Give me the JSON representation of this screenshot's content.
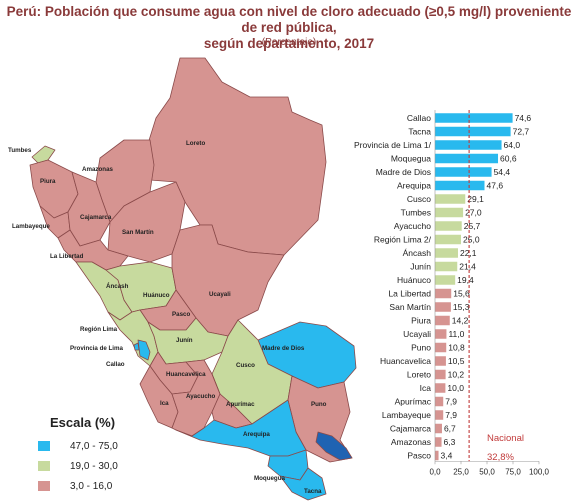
{
  "header": {
    "title_line1": "Perú: Población que consume agua con nivel de cloro adecuado (≥0,5 mg/l) proveniente de red pública,",
    "title_line2": "según departamento, 2017",
    "subtitle": "(Porcentaje)"
  },
  "map": {
    "labels": [
      "Tumbes",
      "Piura",
      "Amazonas",
      "Loreto",
      "Lambayeque",
      "Cajamarca",
      "San Martín",
      "La Libertad",
      "Áncash",
      "Huánuco",
      "Ucayali",
      "Pasco",
      "Región Lima",
      "Provincia de Lima",
      "Callao",
      "Junín",
      "Madre de Dios",
      "Huancavelica",
      "Cusco",
      "Ica",
      "Ayacucho",
      "Apurímac",
      "Puno",
      "Arequipa",
      "Moquegua",
      "Tacna"
    ],
    "colors": {
      "high": "#29b9ee",
      "mid": "#c7da9e",
      "low": "#d69491",
      "lake": "#1f63b2",
      "border": "#8a4a4a"
    }
  },
  "legend": {
    "title": "Escala (%)",
    "items": [
      {
        "label": "47,0 - 75,0",
        "color": "#29b9ee"
      },
      {
        "label": "19,0 - 30,0",
        "color": "#c7da9e"
      },
      {
        "label": "3,0 - 16,0",
        "color": "#d69491"
      }
    ]
  },
  "chart_data": {
    "type": "bar",
    "orientation": "horizontal",
    "categories": [
      "Callao",
      "Tacna",
      "Provincia de Lima 1/",
      "Moquegua",
      "Madre de Dios",
      "Arequipa",
      "Cusco",
      "Tumbes",
      "Ayacucho",
      "Región Lima 2/",
      "Áncash",
      "Junín",
      "Huánuco",
      "La Libertad",
      "San Martín",
      "Piura",
      "Ucayali",
      "Puno",
      "Huancavelica",
      "Loreto",
      "Ica",
      "Apurímac",
      "Lambayeque",
      "Cajamarca",
      "Amazonas",
      "Pasco"
    ],
    "values": [
      74.6,
      72.7,
      64.0,
      60.6,
      54.4,
      47.6,
      29.1,
      27.0,
      25.7,
      25.0,
      22.1,
      21.4,
      19.4,
      15.6,
      15.3,
      14.2,
      11.0,
      10.8,
      10.5,
      10.2,
      10.0,
      7.9,
      7.9,
      6.7,
      6.3,
      3.4
    ],
    "value_labels": [
      "74,6",
      "72,7",
      "64,0",
      "60,6",
      "54,4",
      "47,6",
      "29,1",
      "27,0",
      "25,7",
      "25,0",
      "22,1",
      "21,4",
      "19,4",
      "15,6",
      "15,3",
      "14,2",
      "11,0",
      "10,8",
      "10,5",
      "10,2",
      "10,0",
      "7,9",
      "7,9",
      "6,7",
      "6,3",
      "3,4"
    ],
    "xlim": [
      0,
      100
    ],
    "xticks": [
      "0,0",
      "25,0",
      "50,0",
      "75,0",
      "100,0"
    ],
    "reference_line": {
      "label": "Nacional",
      "value_label": "32,8%",
      "value": 32.8,
      "color": "#c23b3b"
    },
    "bar_colors": {
      "high": "#29b9ee",
      "mid": "#c7da9e",
      "low": "#d69491"
    },
    "thresholds": {
      "high": 47,
      "mid": 19
    }
  }
}
